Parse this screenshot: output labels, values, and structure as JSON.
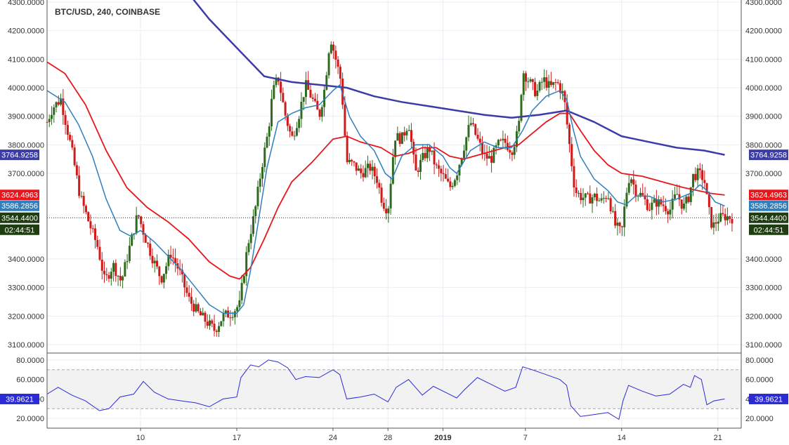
{
  "chart_data": {
    "type": "candlestick",
    "title": "BTC/USD, 240, COINBASE",
    "colors": {
      "up": "#2e6b1f",
      "down": "#d01919",
      "ma_fast": "#2f7fbf",
      "ma_mid": "#e8161b",
      "ma_slow": "#3c3ca8",
      "rsi": "#2b2bd6",
      "grid": "#e9eef3",
      "axis": "#555555"
    },
    "price_axis": {
      "min": 3100,
      "max": 4300,
      "ticks": [
        "3100.0000",
        "3200.0000",
        "3300.0000",
        "3400.0000",
        "3700.0000",
        "3800.0000",
        "3900.0000",
        "4000.0000",
        "4100.0000",
        "4200.0000",
        "4300.0000"
      ]
    },
    "time_axis": {
      "labels": [
        {
          "text": "10",
          "day": 10
        },
        {
          "text": "17",
          "day": 17
        },
        {
          "text": "24",
          "day": 24
        },
        {
          "text": "28",
          "day": 28
        },
        {
          "text": "2019",
          "day": 32
        },
        {
          "text": "7",
          "day": 38
        },
        {
          "text": "14",
          "day": 45
        },
        {
          "text": "21",
          "day": 52
        }
      ],
      "start_day": 3.2,
      "end_day": 53.7
    },
    "rsi_axis": {
      "min": 10,
      "max": 85,
      "ticks": [
        "20.0000",
        "40.0000",
        "60.0000",
        "80.0000"
      ],
      "band": [
        30,
        70
      ]
    },
    "badges": {
      "ma_slow": "3764.9258",
      "ma_mid": "3624.4963",
      "ma_fast": "3586.2856",
      "last": "3544.4400",
      "countdown": "02:44:51",
      "rsi": "39.9621"
    },
    "close_path": [
      [
        3.2,
        3880
      ],
      [
        3.6,
        3930
      ],
      [
        4.2,
        3960
      ],
      [
        5.0,
        3780
      ],
      [
        5.6,
        3620
      ],
      [
        6.3,
        3520
      ],
      [
        6.9,
        3440
      ],
      [
        7.4,
        3320
      ],
      [
        8.0,
        3380
      ],
      [
        8.6,
        3320
      ],
      [
        9.3,
        3460
      ],
      [
        9.8,
        3560
      ],
      [
        10.3,
        3480
      ],
      [
        10.9,
        3400
      ],
      [
        11.5,
        3330
      ],
      [
        12.2,
        3420
      ],
      [
        12.8,
        3360
      ],
      [
        13.5,
        3260
      ],
      [
        14.2,
        3210
      ],
      [
        14.8,
        3180
      ],
      [
        15.4,
        3150
      ],
      [
        16.0,
        3200
      ],
      [
        16.6,
        3210
      ],
      [
        17.2,
        3240
      ],
      [
        17.8,
        3450
      ],
      [
        18.3,
        3560
      ],
      [
        18.8,
        3720
      ],
      [
        19.3,
        3850
      ],
      [
        19.6,
        3980
      ],
      [
        20.0,
        4040
      ],
      [
        20.5,
        3910
      ],
      [
        21.0,
        3820
      ],
      [
        21.5,
        3900
      ],
      [
        22.0,
        4010
      ],
      [
        22.5,
        3960
      ],
      [
        23.0,
        3900
      ],
      [
        23.4,
        4000
      ],
      [
        23.8,
        4180
      ],
      [
        24.2,
        4100
      ],
      [
        24.6,
        4020
      ],
      [
        25.0,
        3740
      ],
      [
        25.5,
        3730
      ],
      [
        26.0,
        3700
      ],
      [
        26.7,
        3720
      ],
      [
        27.2,
        3680
      ],
      [
        27.6,
        3600
      ],
      [
        28.0,
        3570
      ],
      [
        28.5,
        3830
      ],
      [
        29.0,
        3820
      ],
      [
        29.5,
        3880
      ],
      [
        30.0,
        3700
      ],
      [
        30.5,
        3750
      ],
      [
        31.0,
        3790
      ],
      [
        31.5,
        3720
      ],
      [
        32.0,
        3690
      ],
      [
        32.5,
        3650
      ],
      [
        33.0,
        3700
      ],
      [
        33.5,
        3790
      ],
      [
        34.0,
        3880
      ],
      [
        34.5,
        3820
      ],
      [
        35.0,
        3760
      ],
      [
        35.5,
        3750
      ],
      [
        36.0,
        3800
      ],
      [
        36.5,
        3810
      ],
      [
        37.0,
        3780
      ],
      [
        37.5,
        3850
      ],
      [
        37.8,
        4060
      ],
      [
        38.3,
        4020
      ],
      [
        38.8,
        3980
      ],
      [
        39.3,
        4030
      ],
      [
        39.8,
        4000
      ],
      [
        40.3,
        4020
      ],
      [
        40.8,
        3970
      ],
      [
        41.2,
        3800
      ],
      [
        41.6,
        3640
      ],
      [
        42.0,
        3620
      ],
      [
        42.5,
        3610
      ],
      [
        43.0,
        3620
      ],
      [
        43.5,
        3600
      ],
      [
        44.0,
        3630
      ],
      [
        44.5,
        3520
      ],
      [
        45.0,
        3490
      ],
      [
        45.3,
        3620
      ],
      [
        45.6,
        3700
      ],
      [
        46.0,
        3640
      ],
      [
        46.5,
        3620
      ],
      [
        47.0,
        3580
      ],
      [
        47.5,
        3600
      ],
      [
        48.0,
        3590
      ],
      [
        48.5,
        3570
      ],
      [
        49.0,
        3630
      ],
      [
        49.5,
        3580
      ],
      [
        49.9,
        3620
      ],
      [
        50.2,
        3690
      ],
      [
        50.6,
        3700
      ],
      [
        51.0,
        3680
      ],
      [
        51.3,
        3580
      ],
      [
        51.6,
        3510
      ],
      [
        52.0,
        3540
      ],
      [
        52.5,
        3550
      ],
      [
        53.0,
        3544
      ]
    ],
    "ma_fast": [
      [
        3.2,
        3990
      ],
      [
        4.5,
        3950
      ],
      [
        5.5,
        3870
      ],
      [
        6.5,
        3760
      ],
      [
        7.5,
        3610
      ],
      [
        8.5,
        3500
      ],
      [
        9.3,
        3480
      ],
      [
        10.0,
        3500
      ],
      [
        11.0,
        3460
      ],
      [
        12.0,
        3410
      ],
      [
        13.0,
        3360
      ],
      [
        14.0,
        3300
      ],
      [
        15.0,
        3240
      ],
      [
        16.0,
        3210
      ],
      [
        17.0,
        3210
      ],
      [
        17.5,
        3240
      ],
      [
        18.0,
        3360
      ],
      [
        18.6,
        3540
      ],
      [
        19.2,
        3720
      ],
      [
        20.0,
        3880
      ],
      [
        21.0,
        3910
      ],
      [
        22.0,
        3930
      ],
      [
        23.0,
        3940
      ],
      [
        24.0,
        3990
      ],
      [
        24.5,
        4010
      ],
      [
        25.2,
        3900
      ],
      [
        26.0,
        3830
      ],
      [
        27.0,
        3780
      ],
      [
        27.8,
        3700
      ],
      [
        28.3,
        3680
      ],
      [
        29.0,
        3760
      ],
      [
        30.0,
        3800
      ],
      [
        31.0,
        3800
      ],
      [
        32.0,
        3760
      ],
      [
        32.5,
        3720
      ],
      [
        33.0,
        3700
      ],
      [
        34.0,
        3780
      ],
      [
        35.0,
        3810
      ],
      [
        36.0,
        3790
      ],
      [
        37.0,
        3790
      ],
      [
        37.8,
        3850
      ],
      [
        38.5,
        3920
      ],
      [
        39.5,
        3970
      ],
      [
        40.5,
        3990
      ],
      [
        41.0,
        3960
      ],
      [
        41.5,
        3850
      ],
      [
        42.0,
        3760
      ],
      [
        43.0,
        3680
      ],
      [
        44.0,
        3640
      ],
      [
        44.7,
        3600
      ],
      [
        45.3,
        3590
      ],
      [
        46.0,
        3620
      ],
      [
        47.0,
        3620
      ],
      [
        48.0,
        3600
      ],
      [
        49.0,
        3610
      ],
      [
        50.0,
        3630
      ],
      [
        50.7,
        3660
      ],
      [
        51.2,
        3640
      ],
      [
        51.8,
        3600
      ],
      [
        52.5,
        3586
      ]
    ],
    "ma_mid": [
      [
        3.2,
        4090
      ],
      [
        4.5,
        4050
      ],
      [
        6.0,
        3940
      ],
      [
        7.5,
        3780
      ],
      [
        9.0,
        3650
      ],
      [
        10.5,
        3580
      ],
      [
        12.0,
        3530
      ],
      [
        13.5,
        3470
      ],
      [
        15.0,
        3390
      ],
      [
        16.5,
        3340
      ],
      [
        17.2,
        3330
      ],
      [
        18.0,
        3370
      ],
      [
        19.0,
        3470
      ],
      [
        20.0,
        3580
      ],
      [
        21.0,
        3670
      ],
      [
        22.5,
        3740
      ],
      [
        24.0,
        3820
      ],
      [
        25.0,
        3830
      ],
      [
        26.0,
        3810
      ],
      [
        27.5,
        3790
      ],
      [
        28.5,
        3760
      ],
      [
        29.5,
        3770
      ],
      [
        30.5,
        3790
      ],
      [
        31.5,
        3790
      ],
      [
        32.5,
        3760
      ],
      [
        33.5,
        3750
      ],
      [
        35.0,
        3770
      ],
      [
        36.5,
        3790
      ],
      [
        37.5,
        3800
      ],
      [
        38.5,
        3840
      ],
      [
        39.5,
        3880
      ],
      [
        40.5,
        3910
      ],
      [
        41.2,
        3910
      ],
      [
        42.0,
        3850
      ],
      [
        43.0,
        3780
      ],
      [
        44.0,
        3730
      ],
      [
        45.0,
        3700
      ],
      [
        46.5,
        3690
      ],
      [
        48.0,
        3670
      ],
      [
        49.5,
        3650
      ],
      [
        50.5,
        3640
      ],
      [
        51.5,
        3630
      ],
      [
        52.5,
        3624
      ]
    ],
    "ma_slow": [
      [
        10.0,
        4560
      ],
      [
        13.0,
        4360
      ],
      [
        15.0,
        4240
      ],
      [
        17.0,
        4140
      ],
      [
        19.0,
        4040
      ],
      [
        21.0,
        4020
      ],
      [
        23.0,
        4010
      ],
      [
        25.0,
        4000
      ],
      [
        27.0,
        3970
      ],
      [
        29.0,
        3950
      ],
      [
        31.0,
        3935
      ],
      [
        33.0,
        3920
      ],
      [
        35.0,
        3905
      ],
      [
        37.0,
        3895
      ],
      [
        39.0,
        3905
      ],
      [
        41.0,
        3920
      ],
      [
        43.0,
        3880
      ],
      [
        45.0,
        3830
      ],
      [
        47.0,
        3810
      ],
      [
        49.0,
        3790
      ],
      [
        51.0,
        3780
      ],
      [
        52.5,
        3765
      ]
    ],
    "rsi": [
      [
        3.2,
        45
      ],
      [
        4.0,
        52
      ],
      [
        5.0,
        44
      ],
      [
        6.0,
        38
      ],
      [
        7.0,
        28
      ],
      [
        7.7,
        30
      ],
      [
        8.5,
        42
      ],
      [
        9.5,
        45
      ],
      [
        10.2,
        58
      ],
      [
        11.0,
        47
      ],
      [
        12.0,
        40
      ],
      [
        13.0,
        38
      ],
      [
        14.0,
        36
      ],
      [
        15.0,
        32
      ],
      [
        16.0,
        40
      ],
      [
        17.0,
        42
      ],
      [
        17.3,
        62
      ],
      [
        18.0,
        75
      ],
      [
        18.6,
        73
      ],
      [
        19.3,
        80
      ],
      [
        20.0,
        78
      ],
      [
        20.7,
        72
      ],
      [
        21.3,
        60
      ],
      [
        22.0,
        63
      ],
      [
        23.0,
        62
      ],
      [
        24.0,
        70
      ],
      [
        24.5,
        65
      ],
      [
        25.0,
        40
      ],
      [
        26.0,
        42
      ],
      [
        27.0,
        45
      ],
      [
        28.0,
        37
      ],
      [
        28.6,
        52
      ],
      [
        29.5,
        60
      ],
      [
        30.5,
        44
      ],
      [
        31.3,
        53
      ],
      [
        32.3,
        46
      ],
      [
        33.0,
        41
      ],
      [
        33.6,
        50
      ],
      [
        34.5,
        62
      ],
      [
        35.5,
        55
      ],
      [
        36.5,
        48
      ],
      [
        37.3,
        52
      ],
      [
        37.8,
        73
      ],
      [
        38.5,
        70
      ],
      [
        39.5,
        65
      ],
      [
        40.5,
        60
      ],
      [
        41.0,
        54
      ],
      [
        41.3,
        33
      ],
      [
        42.0,
        22
      ],
      [
        43.0,
        24
      ],
      [
        44.0,
        26
      ],
      [
        44.8,
        19
      ],
      [
        45.1,
        38
      ],
      [
        45.5,
        54
      ],
      [
        46.5,
        48
      ],
      [
        47.5,
        43
      ],
      [
        48.5,
        45
      ],
      [
        49.5,
        55
      ],
      [
        50.0,
        52
      ],
      [
        50.3,
        64
      ],
      [
        50.8,
        60
      ],
      [
        51.2,
        34
      ],
      [
        51.7,
        38
      ],
      [
        52.5,
        40
      ]
    ]
  }
}
